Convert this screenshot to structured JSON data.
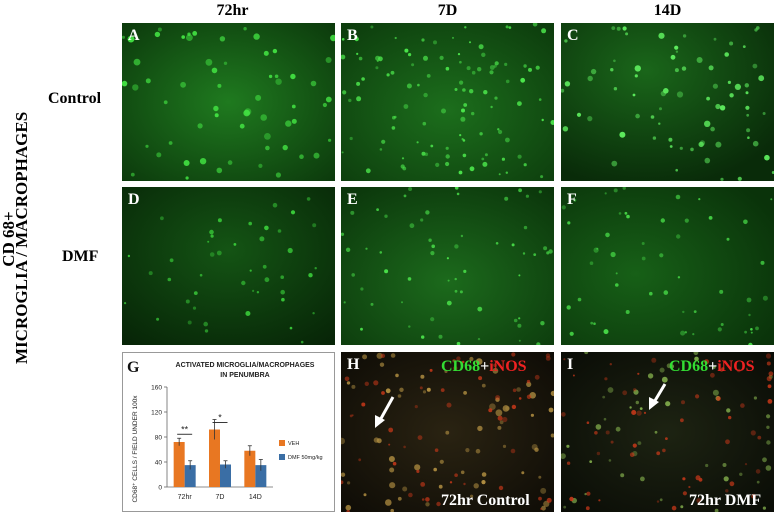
{
  "column_headers": [
    "72hr",
    "7D",
    "14D"
  ],
  "row_headers": {
    "control": "Control",
    "dmf": "DMF"
  },
  "side_label": {
    "line1": "CD 68+",
    "line2": "MICROGLIA / MACROPHAGES"
  },
  "panels": [
    {
      "id": "A",
      "label": "A"
    },
    {
      "id": "B",
      "label": "B"
    },
    {
      "id": "C",
      "label": "C"
    },
    {
      "id": "D",
      "label": "D"
    },
    {
      "id": "E",
      "label": "E"
    },
    {
      "id": "F",
      "label": "F"
    },
    {
      "id": "G",
      "label": "G"
    },
    {
      "id": "H",
      "label": "H",
      "overlay": {
        "part1": "CD68",
        "plus": "+",
        "part2": "iNOS"
      },
      "caption": "72hr Control"
    },
    {
      "id": "I",
      "label": "I",
      "overlay": {
        "part1": "CD68",
        "plus": "+",
        "part2": "iNOS"
      },
      "caption": "72hr DMF"
    }
  ],
  "colors": {
    "fluor_green": "#33dd33",
    "inos_red": "#ee2222",
    "veh": "#e87722",
    "dmf": "#3a6ea5"
  },
  "chart_data": {
    "type": "bar",
    "title": "ACTIVATED MICROGLIA/MACROPHAGES",
    "subtitle": "IN PENUMBRA",
    "ylabel": "CD68⁺ CELLS / FIELD UNDER 100x",
    "xlabel": "",
    "categories": [
      "72hr",
      "7D",
      "14D"
    ],
    "ylim": [
      0,
      160
    ],
    "yticks": [
      "0",
      "40",
      "80",
      "120",
      "160"
    ],
    "series": [
      {
        "name": "VEH",
        "values": [
          72,
          92,
          58
        ],
        "errors": [
          6,
          16,
          8
        ]
      },
      {
        "name": "DMF 50mg/kg",
        "values": [
          35,
          36,
          35
        ],
        "errors": [
          7,
          6,
          9
        ]
      }
    ],
    "significance": [
      {
        "category": "72hr",
        "label": "**"
      },
      {
        "category": "7D",
        "label": "*"
      }
    ],
    "legend": "right",
    "grid": false
  }
}
